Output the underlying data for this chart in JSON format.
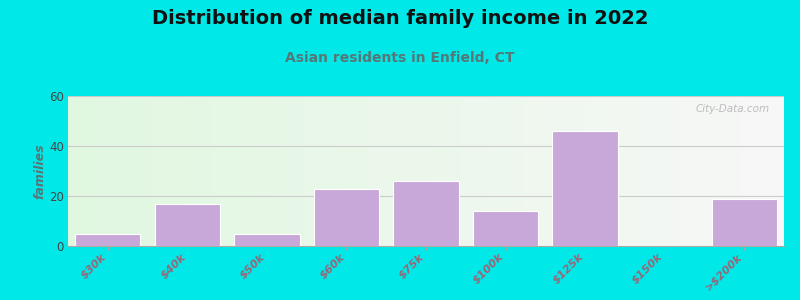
{
  "title": "Distribution of median family income in 2022",
  "subtitle": "Asian residents in Enfield, CT",
  "categories": [
    "$30k",
    "$40k",
    "$50k",
    "$60k",
    "$75k",
    "$100k",
    "$125k",
    "$150k",
    ">$200k"
  ],
  "values": [
    5,
    17,
    5,
    23,
    26,
    14,
    46,
    0,
    19
  ],
  "bar_color": "#c8a8d8",
  "bar_edge_color": "#ffffff",
  "ylabel": "families",
  "ylim": [
    0,
    60
  ],
  "yticks": [
    0,
    20,
    40,
    60
  ],
  "background_outer": "#00e8e8",
  "watermark": "City-Data.com",
  "title_fontsize": 14,
  "subtitle_fontsize": 10,
  "tick_label_color": "#996677",
  "ylabel_color": "#557777",
  "subtitle_color": "#557777",
  "title_color": "#111111"
}
